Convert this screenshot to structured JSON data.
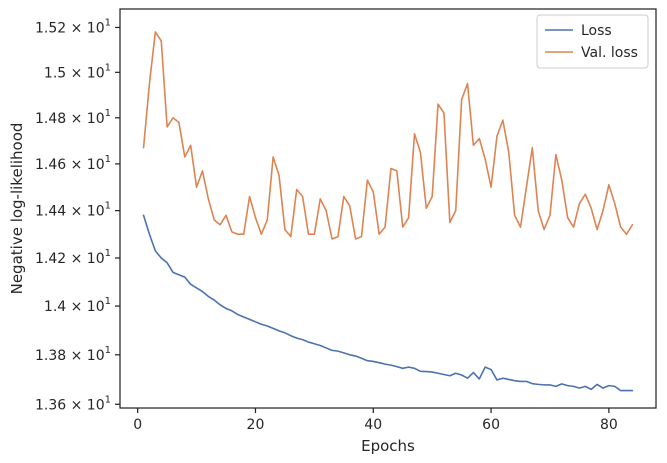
{
  "chart_data": {
    "type": "line",
    "xlabel": "Epochs",
    "ylabel": "Negative log-likelihood",
    "xlim": [
      -3,
      88
    ],
    "ylim": [
      13.585,
      15.283
    ],
    "yscale": "log",
    "grid": false,
    "legend_position": "top-right",
    "x_ticks": [
      0,
      20,
      40,
      60,
      80
    ],
    "y_ticks": [
      {
        "value": 13.6,
        "mantissa": "1.36",
        "base": "10",
        "exponent": "1"
      },
      {
        "value": 13.8,
        "mantissa": "1.38",
        "base": "10",
        "exponent": "1"
      },
      {
        "value": 14.0,
        "mantissa": "1.4",
        "base": "10",
        "exponent": "1"
      },
      {
        "value": 14.2,
        "mantissa": "1.42",
        "base": "10",
        "exponent": "1"
      },
      {
        "value": 14.4,
        "mantissa": "1.44",
        "base": "10",
        "exponent": "1"
      },
      {
        "value": 14.6,
        "mantissa": "1.46",
        "base": "10",
        "exponent": "1"
      },
      {
        "value": 14.8,
        "mantissa": "1.48",
        "base": "10",
        "exponent": "1"
      },
      {
        "value": 15.0,
        "mantissa": "1.5",
        "base": "10",
        "exponent": "1"
      },
      {
        "value": 15.2,
        "mantissa": "1.52",
        "base": "10",
        "exponent": "1"
      }
    ],
    "series": [
      {
        "name": "Loss",
        "color": "#4c72b0",
        "x": [
          1,
          2,
          3,
          4,
          5,
          6,
          7,
          8,
          9,
          10,
          11,
          12,
          13,
          14,
          15,
          16,
          17,
          18,
          19,
          20,
          21,
          22,
          23,
          24,
          25,
          26,
          27,
          28,
          29,
          30,
          31,
          32,
          33,
          34,
          35,
          36,
          37,
          38,
          39,
          40,
          41,
          42,
          43,
          44,
          45,
          46,
          47,
          48,
          49,
          50,
          51,
          52,
          53,
          54,
          55,
          56,
          57,
          58,
          59,
          60,
          61,
          62,
          63,
          64,
          65,
          66,
          67,
          68,
          69,
          70,
          71,
          72,
          73,
          74,
          75,
          76,
          77,
          78,
          79,
          80,
          81,
          82,
          83,
          84
        ],
        "values": [
          14.38,
          14.3,
          14.23,
          14.2,
          14.18,
          14.14,
          14.13,
          14.12,
          14.09,
          14.075,
          14.06,
          14.04,
          14.025,
          14.005,
          13.99,
          13.98,
          13.965,
          13.955,
          13.945,
          13.935,
          13.925,
          13.918,
          13.908,
          13.898,
          13.89,
          13.878,
          13.868,
          13.862,
          13.852,
          13.845,
          13.838,
          13.828,
          13.818,
          13.815,
          13.808,
          13.8,
          13.795,
          13.786,
          13.776,
          13.773,
          13.768,
          13.762,
          13.758,
          13.752,
          13.745,
          13.75,
          13.745,
          13.733,
          13.732,
          13.73,
          13.725,
          13.72,
          13.715,
          13.725,
          13.718,
          13.705,
          13.728,
          13.702,
          13.75,
          13.74,
          13.698,
          13.705,
          13.7,
          13.695,
          13.692,
          13.692,
          13.683,
          13.68,
          13.678,
          13.678,
          13.672,
          13.682,
          13.675,
          13.672,
          13.665,
          13.672,
          13.66,
          13.68,
          13.665,
          13.675,
          13.672,
          13.655,
          13.655,
          13.655
        ]
      },
      {
        "name": "Val. loss",
        "color": "#dd8452",
        "x": [
          1,
          2,
          3,
          4,
          5,
          6,
          7,
          8,
          9,
          10,
          11,
          12,
          13,
          14,
          15,
          16,
          17,
          18,
          19,
          20,
          21,
          22,
          23,
          24,
          25,
          26,
          27,
          28,
          29,
          30,
          31,
          32,
          33,
          34,
          35,
          36,
          37,
          38,
          39,
          40,
          41,
          42,
          43,
          44,
          45,
          46,
          47,
          48,
          49,
          50,
          51,
          52,
          53,
          54,
          55,
          56,
          57,
          58,
          59,
          60,
          61,
          62,
          63,
          64,
          65,
          66,
          67,
          68,
          69,
          70,
          71,
          72,
          73,
          74,
          75,
          76,
          77,
          78,
          79,
          80,
          81,
          82,
          83,
          84
        ],
        "values": [
          14.67,
          14.95,
          15.18,
          15.14,
          14.76,
          14.8,
          14.78,
          14.63,
          14.68,
          14.5,
          14.57,
          14.45,
          14.36,
          14.34,
          14.38,
          14.31,
          14.3,
          14.3,
          14.46,
          14.37,
          14.3,
          14.36,
          14.63,
          14.55,
          14.32,
          14.29,
          14.49,
          14.46,
          14.3,
          14.3,
          14.45,
          14.4,
          14.28,
          14.29,
          14.46,
          14.42,
          14.28,
          14.29,
          14.53,
          14.48,
          14.3,
          14.33,
          14.58,
          14.57,
          14.33,
          14.37,
          14.73,
          14.65,
          14.41,
          14.46,
          14.86,
          14.82,
          14.35,
          14.4,
          14.88,
          14.95,
          14.68,
          14.71,
          14.62,
          14.5,
          14.72,
          14.79,
          14.65,
          14.38,
          14.33,
          14.5,
          14.67,
          14.4,
          14.32,
          14.38,
          14.64,
          14.53,
          14.37,
          14.33,
          14.43,
          14.47,
          14.41,
          14.32,
          14.4,
          14.51,
          14.43,
          14.33,
          14.3,
          14.34
        ]
      }
    ]
  }
}
